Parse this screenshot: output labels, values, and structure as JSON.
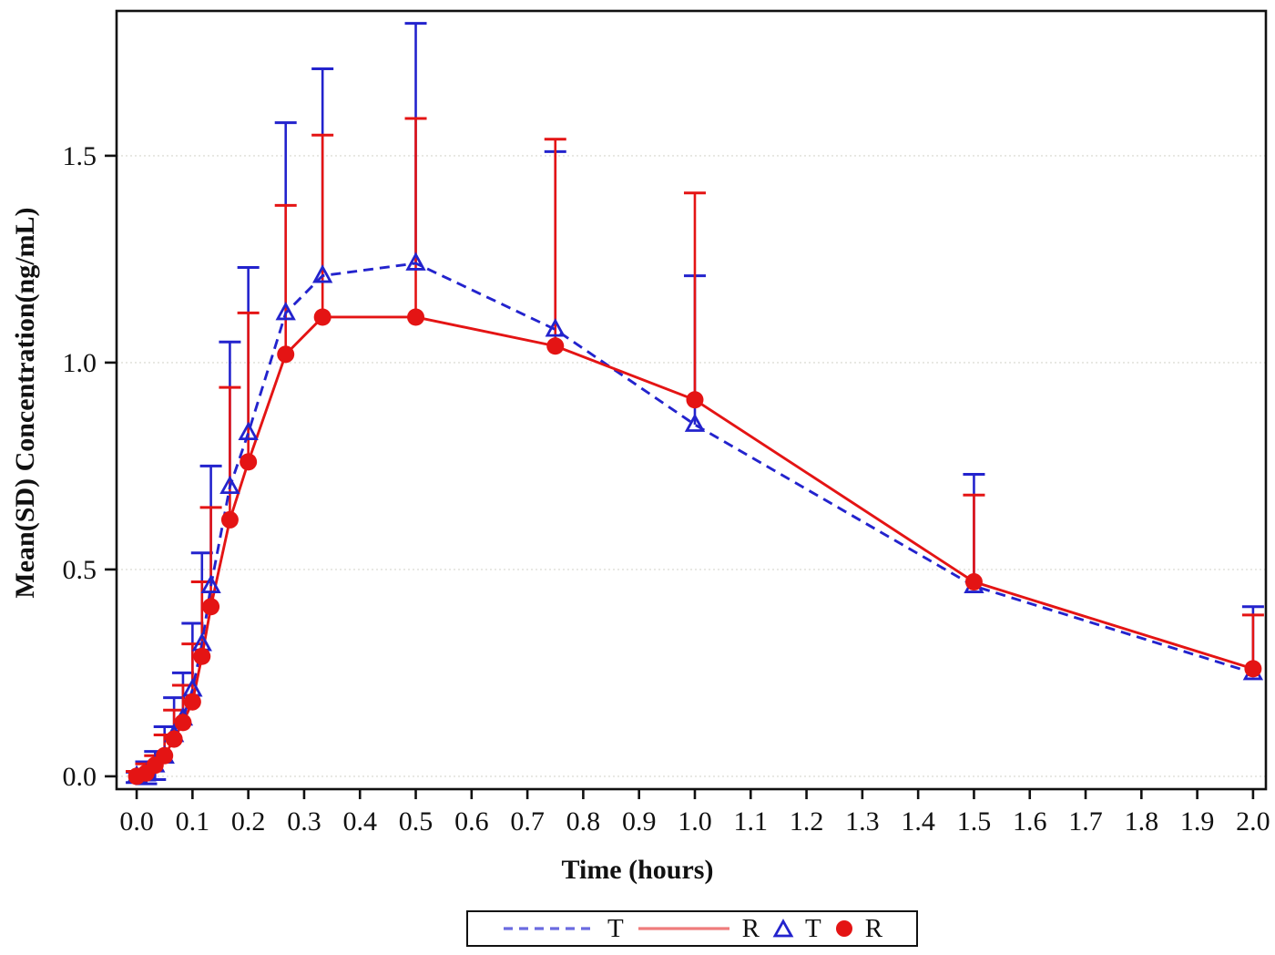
{
  "chart_data": {
    "type": "line",
    "title": "",
    "xlabel": "Time (hours)",
    "ylabel": "Mean(SD) Concentration(ng/mL)",
    "x": [
      0,
      0.017,
      0.033,
      0.05,
      0.067,
      0.083,
      0.1,
      0.117,
      0.133,
      0.167,
      0.2,
      0.267,
      0.333,
      0.5,
      0.75,
      1.0,
      1.5,
      2.0
    ],
    "series": [
      {
        "name": "T",
        "line": "dashed",
        "marker": "open-triangle",
        "color": "#2323cd",
        "values": [
          0.0,
          0.005,
          0.027,
          0.048,
          0.1,
          0.14,
          0.21,
          0.32,
          0.46,
          0.7,
          0.83,
          1.12,
          1.21,
          1.24,
          1.08,
          0.85,
          0.46,
          0.25
        ],
        "sd_upper": [
          0.01,
          0.035,
          0.06,
          0.12,
          0.19,
          0.25,
          0.37,
          0.54,
          0.75,
          1.05,
          1.23,
          1.58,
          1.71,
          1.82,
          1.51,
          1.21,
          0.73,
          0.41
        ],
        "sd_lower": [
          -0.015,
          -0.018,
          -0.008,
          null,
          null,
          null,
          null,
          null,
          null,
          null,
          null,
          null,
          null,
          null,
          null,
          null,
          null,
          null
        ]
      },
      {
        "name": "R",
        "line": "solid",
        "marker": "filled-circle",
        "color": "#e41414",
        "values": [
          0.0,
          0.008,
          0.027,
          0.05,
          0.09,
          0.13,
          0.18,
          0.29,
          0.41,
          0.62,
          0.76,
          1.02,
          1.11,
          1.11,
          1.04,
          0.91,
          0.47,
          0.26
        ],
        "sd_upper": [
          0.012,
          0.03,
          0.05,
          0.1,
          0.16,
          0.22,
          0.32,
          0.47,
          0.65,
          0.94,
          1.12,
          1.38,
          1.55,
          1.59,
          1.54,
          1.41,
          0.68,
          0.39
        ],
        "sd_lower": [
          null,
          null,
          null,
          null,
          null,
          null,
          null,
          null,
          null,
          null,
          null,
          null,
          null,
          null,
          null,
          null,
          null,
          null
        ]
      }
    ],
    "x_ticks": [
      "0.0",
      "0.1",
      "0.2",
      "0.3",
      "0.4",
      "0.5",
      "0.6",
      "0.7",
      "0.8",
      "0.9",
      "1.0",
      "1.1",
      "1.2",
      "1.3",
      "1.4",
      "1.5",
      "1.6",
      "1.7",
      "1.8",
      "1.9",
      "2.0"
    ],
    "y_ticks": [
      "0.0",
      "0.5",
      "1.0",
      "1.5"
    ],
    "xlim": [
      -0.036,
      2.023
    ],
    "ylim": [
      -0.031,
      1.85
    ],
    "grid": "horizontal-dotted",
    "legend_position": "bottom-center",
    "legend": {
      "entries": [
        {
          "symbol": "dashed-line",
          "label": "T"
        },
        {
          "symbol": "solid-line",
          "label": "R"
        },
        {
          "symbol": "open-triangle",
          "label": "T"
        },
        {
          "symbol": "filled-circle",
          "label": "R"
        }
      ]
    }
  },
  "colors": {
    "series_t": "#2323cd",
    "series_r": "#e41414",
    "grid": "#e4e4dd",
    "axis": "#111111",
    "background": "#ffffff"
  }
}
